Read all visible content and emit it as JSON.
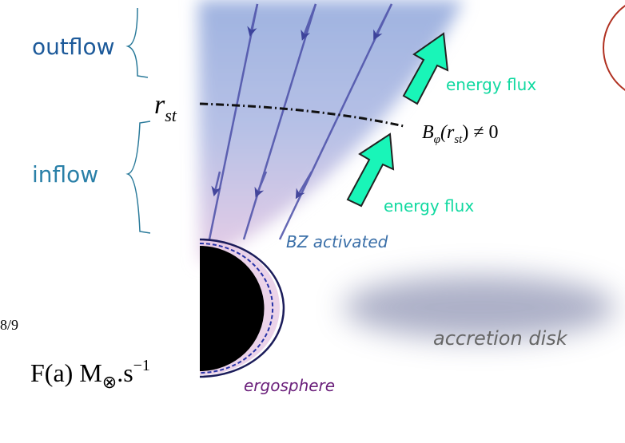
{
  "labels": {
    "outflow": "outflow",
    "inflow": "inflow",
    "rst": {
      "base": "r",
      "sub": "st"
    },
    "energy_flux_top": "energy flux",
    "energy_flux_bottom": "energy flux",
    "b_phi": {
      "base": "B",
      "sub": "φ",
      "arg": "(r",
      "arg_sub": "st",
      "rest": ") ≠ 0"
    },
    "bz": "BZ activated",
    "fraction": "8/9",
    "formula": {
      "text": "F(a) M",
      "sub": "⊗",
      "rest": ".s",
      "sup": "−1"
    },
    "disk": "accretion disk",
    "ergosphere": "ergosphere"
  }
}
